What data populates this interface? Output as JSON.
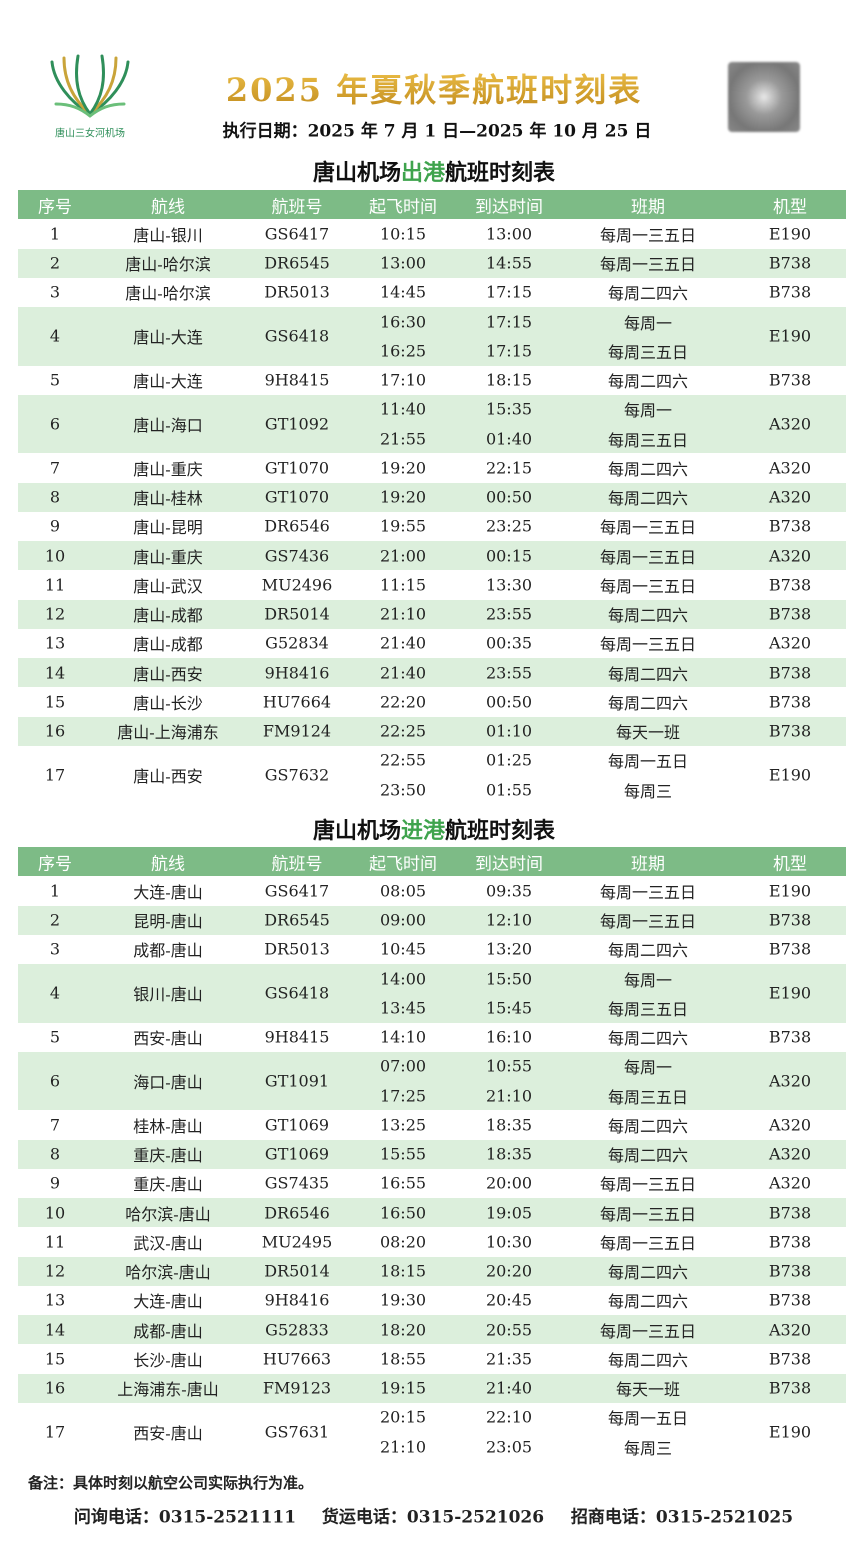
{
  "header": {
    "logo_text": "唐山三女河机场",
    "title": "2025 年夏秋季航班时刻表",
    "subtitle": "执行日期：2025 年 7 月 1 日—2025 年 10 月 25 日"
  },
  "tables": [
    {
      "title": {
        "pre": "唐山机场",
        "highlight": "出港",
        "post": "航班时刻表"
      },
      "header": [
        "序号",
        "航线",
        "航班号",
        "起飞时间",
        "到达时间",
        "班期",
        "机型"
      ],
      "rows": [
        {
          "no": "1",
          "route": "唐山-银川",
          "flight": "GS6417",
          "dep": [
            "10:15"
          ],
          "arr": [
            "13:00"
          ],
          "days": [
            "每周一三五日"
          ],
          "type": "E190"
        },
        {
          "no": "2",
          "route": "唐山-哈尔滨",
          "flight": "DR6545",
          "dep": [
            "13:00"
          ],
          "arr": [
            "14:55"
          ],
          "days": [
            "每周一三五日"
          ],
          "type": "B738"
        },
        {
          "no": "3",
          "route": "唐山-哈尔滨",
          "flight": "DR5013",
          "dep": [
            "14:45"
          ],
          "arr": [
            "17:15"
          ],
          "days": [
            "每周二四六"
          ],
          "type": "B738"
        },
        {
          "no": "4",
          "route": "唐山-大连",
          "flight": "GS6418",
          "dep": [
            "16:30",
            "16:25"
          ],
          "arr": [
            "17:15",
            "17:15"
          ],
          "days": [
            "每周一",
            "每周三五日"
          ],
          "type": "E190"
        },
        {
          "no": "5",
          "route": "唐山-大连",
          "flight": "9H8415",
          "dep": [
            "17:10"
          ],
          "arr": [
            "18:15"
          ],
          "days": [
            "每周二四六"
          ],
          "type": "B738"
        },
        {
          "no": "6",
          "route": "唐山-海口",
          "flight": "GT1092",
          "dep": [
            "11:40",
            "21:55"
          ],
          "arr": [
            "15:35",
            "01:40"
          ],
          "days": [
            "每周一",
            "每周三五日"
          ],
          "type": "A320"
        },
        {
          "no": "7",
          "route": "唐山-重庆",
          "flight": "GT1070",
          "dep": [
            "19:20"
          ],
          "arr": [
            "22:15"
          ],
          "days": [
            "每周二四六"
          ],
          "type": "A320"
        },
        {
          "no": "8",
          "route": "唐山-桂林",
          "flight": "GT1070",
          "dep": [
            "19:20"
          ],
          "arr": [
            "00:50"
          ],
          "days": [
            "每周二四六"
          ],
          "type": "A320"
        },
        {
          "no": "9",
          "route": "唐山-昆明",
          "flight": "DR6546",
          "dep": [
            "19:55"
          ],
          "arr": [
            "23:25"
          ],
          "days": [
            "每周一三五日"
          ],
          "type": "B738"
        },
        {
          "no": "10",
          "route": "唐山-重庆",
          "flight": "GS7436",
          "dep": [
            "21:00"
          ],
          "arr": [
            "00:15"
          ],
          "days": [
            "每周一三五日"
          ],
          "type": "A320"
        },
        {
          "no": "11",
          "route": "唐山-武汉",
          "flight": "MU2496",
          "dep": [
            "11:15"
          ],
          "arr": [
            "13:30"
          ],
          "days": [
            "每周一三五日"
          ],
          "type": "B738"
        },
        {
          "no": "12",
          "route": "唐山-成都",
          "flight": "DR5014",
          "dep": [
            "21:10"
          ],
          "arr": [
            "23:55"
          ],
          "days": [
            "每周二四六"
          ],
          "type": "B738"
        },
        {
          "no": "13",
          "route": "唐山-成都",
          "flight": "G52834",
          "dep": [
            "21:40"
          ],
          "arr": [
            "00:35"
          ],
          "days": [
            "每周一三五日"
          ],
          "type": "A320"
        },
        {
          "no": "14",
          "route": "唐山-西安",
          "flight": "9H8416",
          "dep": [
            "21:40"
          ],
          "arr": [
            "23:55"
          ],
          "days": [
            "每周二四六"
          ],
          "type": "B738"
        },
        {
          "no": "15",
          "route": "唐山-长沙",
          "flight": "HU7664",
          "dep": [
            "22:20"
          ],
          "arr": [
            "00:50"
          ],
          "days": [
            "每周二四六"
          ],
          "type": "B738"
        },
        {
          "no": "16",
          "route": "唐山-上海浦东",
          "flight": "FM9124",
          "dep": [
            "22:25"
          ],
          "arr": [
            "01:10"
          ],
          "days": [
            "每天一班"
          ],
          "type": "B738"
        },
        {
          "no": "17",
          "route": "唐山-西安",
          "flight": "GS7632",
          "dep": [
            "22:55",
            "23:50"
          ],
          "arr": [
            "01:25",
            "01:55"
          ],
          "days": [
            "每周一五日",
            "每周三"
          ],
          "type": "E190"
        }
      ]
    },
    {
      "title": {
        "pre": "唐山机场",
        "highlight": "进港",
        "post": "航班时刻表"
      },
      "header": [
        "序号",
        "航线",
        "航班号",
        "起飞时间",
        "到达时间",
        "班期",
        "机型"
      ],
      "rows": [
        {
          "no": "1",
          "route": "大连-唐山",
          "flight": "GS6417",
          "dep": [
            "08:05"
          ],
          "arr": [
            "09:35"
          ],
          "days": [
            "每周一三五日"
          ],
          "type": "E190"
        },
        {
          "no": "2",
          "route": "昆明-唐山",
          "flight": "DR6545",
          "dep": [
            "09:00"
          ],
          "arr": [
            "12:10"
          ],
          "days": [
            "每周一三五日"
          ],
          "type": "B738"
        },
        {
          "no": "3",
          "route": "成都-唐山",
          "flight": "DR5013",
          "dep": [
            "10:45"
          ],
          "arr": [
            "13:20"
          ],
          "days": [
            "每周二四六"
          ],
          "type": "B738"
        },
        {
          "no": "4",
          "route": "银川-唐山",
          "flight": "GS6418",
          "dep": [
            "14:00",
            "13:45"
          ],
          "arr": [
            "15:50",
            "15:45"
          ],
          "days": [
            "每周一",
            "每周三五日"
          ],
          "type": "E190"
        },
        {
          "no": "5",
          "route": "西安-唐山",
          "flight": "9H8415",
          "dep": [
            "14:10"
          ],
          "arr": [
            "16:10"
          ],
          "days": [
            "每周二四六"
          ],
          "type": "B738"
        },
        {
          "no": "6",
          "route": "海口-唐山",
          "flight": "GT1091",
          "dep": [
            "07:00",
            "17:25"
          ],
          "arr": [
            "10:55",
            "21:10"
          ],
          "days": [
            "每周一",
            "每周三五日"
          ],
          "type": "A320"
        },
        {
          "no": "7",
          "route": "桂林-唐山",
          "flight": "GT1069",
          "dep": [
            "13:25"
          ],
          "arr": [
            "18:35"
          ],
          "days": [
            "每周二四六"
          ],
          "type": "A320"
        },
        {
          "no": "8",
          "route": "重庆-唐山",
          "flight": "GT1069",
          "dep": [
            "15:55"
          ],
          "arr": [
            "18:35"
          ],
          "days": [
            "每周二四六"
          ],
          "type": "A320"
        },
        {
          "no": "9",
          "route": "重庆-唐山",
          "flight": "GS7435",
          "dep": [
            "16:55"
          ],
          "arr": [
            "20:00"
          ],
          "days": [
            "每周一三五日"
          ],
          "type": "A320"
        },
        {
          "no": "10",
          "route": "哈尔滨-唐山",
          "flight": "DR6546",
          "dep": [
            "16:50"
          ],
          "arr": [
            "19:05"
          ],
          "days": [
            "每周一三五日"
          ],
          "type": "B738"
        },
        {
          "no": "11",
          "route": "武汉-唐山",
          "flight": "MU2495",
          "dep": [
            "08:20"
          ],
          "arr": [
            "10:30"
          ],
          "days": [
            "每周一三五日"
          ],
          "type": "B738"
        },
        {
          "no": "12",
          "route": "哈尔滨-唐山",
          "flight": "DR5014",
          "dep": [
            "18:15"
          ],
          "arr": [
            "20:20"
          ],
          "days": [
            "每周二四六"
          ],
          "type": "B738"
        },
        {
          "no": "13",
          "route": "大连-唐山",
          "flight": "9H8416",
          "dep": [
            "19:30"
          ],
          "arr": [
            "20:45"
          ],
          "days": [
            "每周二四六"
          ],
          "type": "B738"
        },
        {
          "no": "14",
          "route": "成都-唐山",
          "flight": "G52833",
          "dep": [
            "18:20"
          ],
          "arr": [
            "20:55"
          ],
          "days": [
            "每周一三五日"
          ],
          "type": "A320"
        },
        {
          "no": "15",
          "route": "长沙-唐山",
          "flight": "HU7663",
          "dep": [
            "18:55"
          ],
          "arr": [
            "21:35"
          ],
          "days": [
            "每周二四六"
          ],
          "type": "B738"
        },
        {
          "no": "16",
          "route": "上海浦东-唐山",
          "flight": "FM9123",
          "dep": [
            "19:15"
          ],
          "arr": [
            "21:40"
          ],
          "days": [
            "每天一班"
          ],
          "type": "B738"
        },
        {
          "no": "17",
          "route": "西安-唐山",
          "flight": "GS7631",
          "dep": [
            "20:15",
            "21:10"
          ],
          "arr": [
            "22:10",
            "23:05"
          ],
          "days": [
            "每周一五日",
            "每周三"
          ],
          "type": "E190"
        }
      ]
    }
  ],
  "note": "备注：具体时刻以航空公司实际执行为准。",
  "contacts": [
    "问询电话：0315-2521111",
    "货运电话：0315-2521026",
    "招商电话：0315-2521025"
  ]
}
